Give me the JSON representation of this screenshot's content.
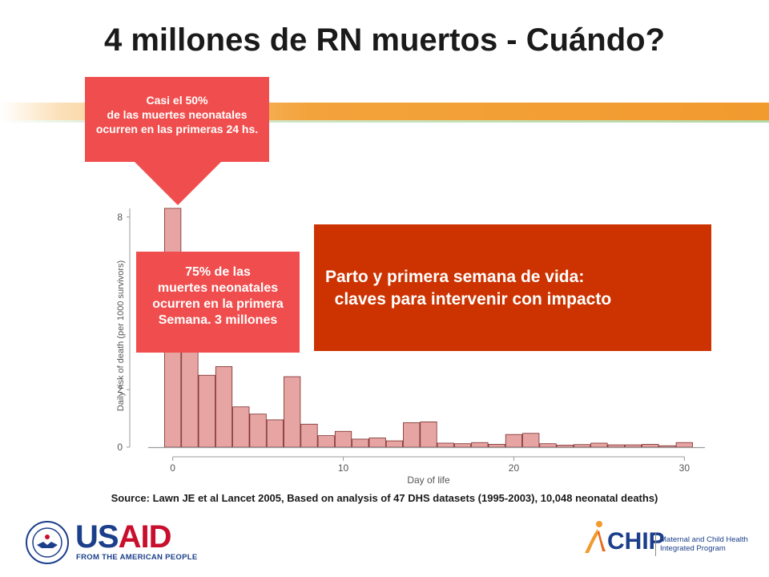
{
  "title": "4 millones de RN muertos - Cuándo?",
  "callout_top": {
    "lines": [
      "Casi el 50%",
      "de las muertes neonatales",
      "ocurren en las primeras 24 hs."
    ]
  },
  "callout_mid": {
    "lines": [
      "75% de las",
      "muertes neonatales",
      "ocurren en la primera",
      "Semana. 3 millones"
    ]
  },
  "panel": {
    "lines": [
      "Parto y primera semana de vida:",
      "  claves para intervenir con impacto"
    ]
  },
  "source": "Source: Lawn JE et al Lancet 2005, Based on analysis of 47 DHS datasets (1995-2003), 10,048 neonatal deaths)",
  "colors": {
    "bar_fill": "#e6a5a3",
    "bar_stroke": "#7a2a2a",
    "callout": "#f04e4e",
    "panel": "#cc3300",
    "band": "#f19a2e"
  },
  "logos": {
    "usaid_us": "US",
    "usaid_aid": "AID",
    "usaid_tagline": "FROM THE AMERICAN PEOPLE",
    "chip_name": "CHIP",
    "chip_tagline": [
      "Maternal and Child Health",
      "Integrated Program"
    ]
  },
  "chart_data": {
    "type": "bar",
    "xlabel": "Day of life",
    "ylabel": "Daily risk of death (per 1000 survivors)",
    "xlim": [
      -0.5,
      30.5
    ],
    "ylim": [
      0,
      8.3
    ],
    "x_ticks": [
      0,
      10,
      20,
      30
    ],
    "y_ticks": [
      0,
      2,
      8
    ],
    "x": [
      0,
      1,
      2,
      3,
      4,
      5,
      6,
      7,
      8,
      9,
      10,
      11,
      12,
      13,
      14,
      15,
      16,
      17,
      18,
      19,
      20,
      21,
      22,
      23,
      24,
      25,
      26,
      27,
      28,
      29,
      30
    ],
    "values": [
      8.3,
      3.5,
      2.5,
      2.8,
      1.4,
      1.15,
      0.95,
      2.45,
      0.8,
      0.4,
      0.55,
      0.28,
      0.32,
      0.22,
      0.85,
      0.88,
      0.14,
      0.12,
      0.16,
      0.1,
      0.44,
      0.48,
      0.12,
      0.07,
      0.09,
      0.14,
      0.08,
      0.08,
      0.1,
      0.05,
      0.16
    ]
  }
}
